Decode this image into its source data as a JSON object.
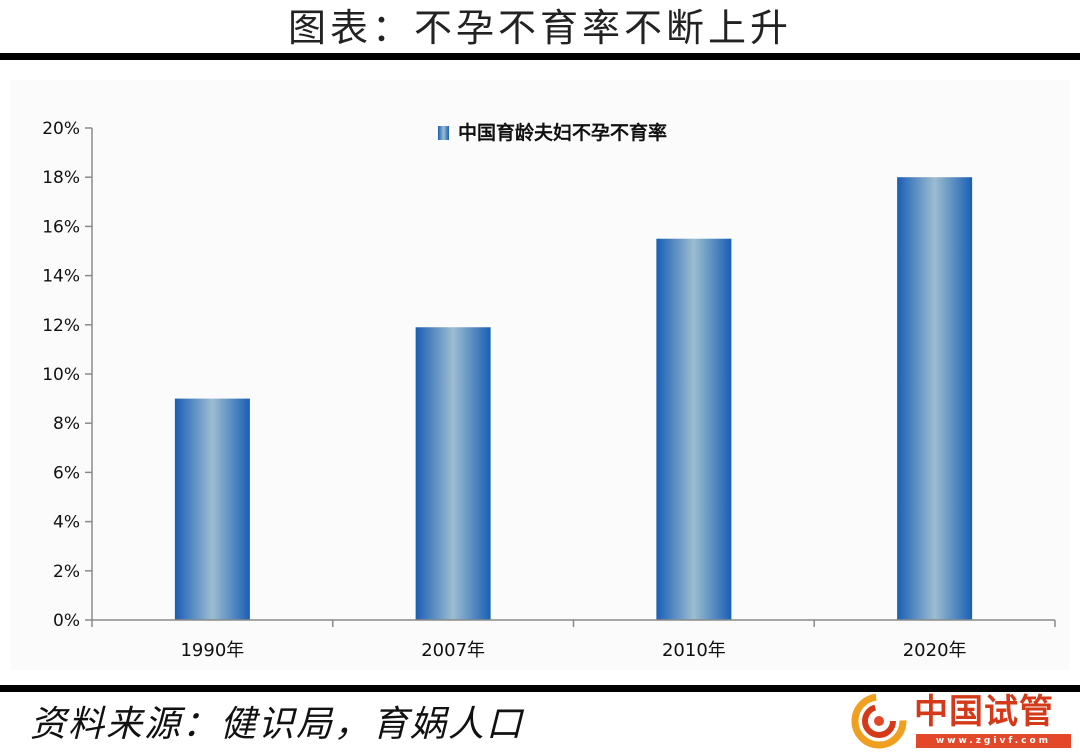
{
  "page": {
    "title": "图表：不孕不育率不断上升",
    "source": "资料来源：健识局，育娲人口"
  },
  "watermark": {
    "name": "中国试管",
    "url": "www.zgivf.com"
  },
  "chart_data": {
    "type": "bar",
    "categories": [
      "1990年",
      "2007年",
      "2010年",
      "2020年"
    ],
    "series": [
      {
        "name": "中国育龄夫妇不孕不育率",
        "values": [
          9.0,
          11.9,
          15.5,
          18.0
        ]
      }
    ],
    "ylim": [
      0,
      20
    ],
    "yticks": [
      "0%",
      "2%",
      "4%",
      "6%",
      "8%",
      "10%",
      "12%",
      "14%",
      "16%",
      "18%",
      "20%"
    ],
    "ytick_values": [
      0,
      2,
      4,
      6,
      8,
      10,
      12,
      14,
      16,
      18,
      20
    ],
    "grid": false,
    "legend_position": "top-center",
    "colors": {
      "bar_edge": "#1a5fb4",
      "bar_center": "#9cbdd0",
      "axis": "#8a8a8a"
    }
  }
}
